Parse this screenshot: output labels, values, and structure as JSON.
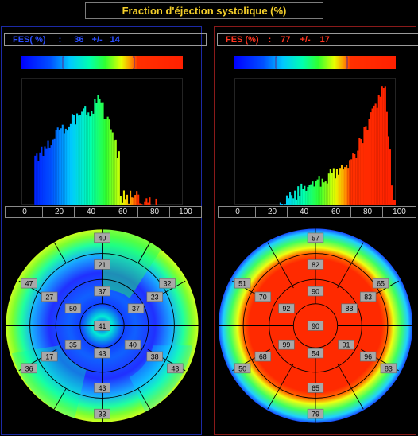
{
  "title": "Fraction d'éjection systolique (%)",
  "axis_ticks": [
    "0",
    "20",
    "40",
    "60",
    "80",
    "100"
  ],
  "left": {
    "stat": {
      "label": "FES( %)",
      "sep": ":",
      "mean": "36",
      "pm": "+/-",
      "sd": "14"
    },
    "bullseye_values": [
      "40",
      "21",
      "37",
      "32",
      "23",
      "37",
      "41",
      "50",
      "27",
      "47",
      "17",
      "36",
      "35",
      "40",
      "38",
      "43",
      "43",
      "33",
      "43"
    ],
    "histogram_peak_range": [
      20,
      50
    ]
  },
  "right": {
    "stat": {
      "label": "FES (%)",
      "sep": ":",
      "mean": "77",
      "pm": "+/-",
      "sd": "17"
    },
    "bullseye_values": [
      "57",
      "82",
      "90",
      "65",
      "83",
      "88",
      "90",
      "92",
      "70",
      "51",
      "68",
      "50",
      "99",
      "91",
      "96",
      "83",
      "65",
      "79",
      "54"
    ],
    "histogram_peak_range": [
      80,
      95
    ]
  },
  "colors": {
    "title": "#f5cf2a",
    "left_stat": "#2a4dff",
    "right_stat": "#ff3520",
    "left_border": "#1c2aa6",
    "right_border": "#8a1a1a"
  }
}
